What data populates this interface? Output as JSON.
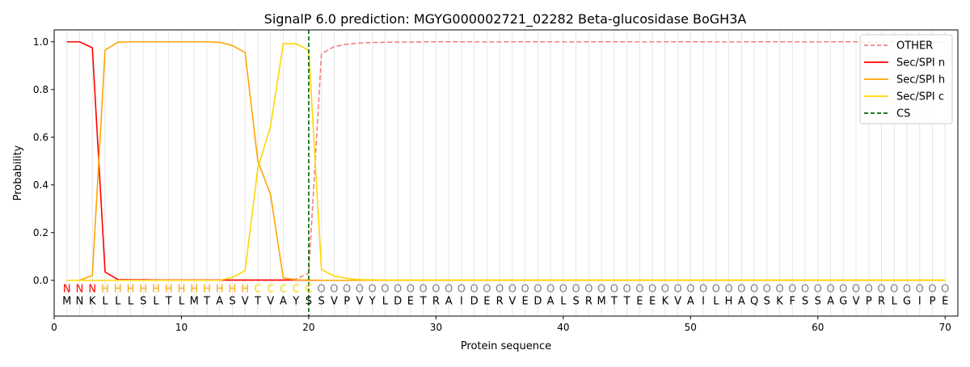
{
  "chart_data": {
    "type": "line",
    "title": "SignalP 6.0 prediction: MGYG000002721_02282 Beta-glucosidase BoGH3A",
    "xlabel": "Protein sequence",
    "ylabel": "Probability",
    "xlim": [
      0,
      71
    ],
    "ylim": [
      -0.15,
      1.05
    ],
    "x_ticks": [
      0,
      10,
      20,
      30,
      40,
      50,
      60,
      70
    ],
    "y_ticks": [
      0.0,
      0.2,
      0.4,
      0.6,
      0.8,
      1.0
    ],
    "x_tick_labels": [
      "0",
      "10",
      "20",
      "30",
      "40",
      "50",
      "60",
      "70"
    ],
    "y_tick_labels": [
      "0.0",
      "0.2",
      "0.4",
      "0.6",
      "0.8",
      "1.0"
    ],
    "grid": "vertical lines at each residue",
    "legend_position": "top-right",
    "x": [
      1,
      2,
      3,
      4,
      5,
      6,
      7,
      8,
      9,
      10,
      11,
      12,
      13,
      14,
      15,
      16,
      17,
      18,
      19,
      20,
      21,
      22,
      23,
      24,
      25,
      26,
      27,
      28,
      29,
      30,
      31,
      32,
      33,
      34,
      35,
      36,
      37,
      38,
      39,
      40,
      41,
      42,
      43,
      44,
      45,
      46,
      47,
      48,
      49,
      50,
      51,
      52,
      53,
      54,
      55,
      56,
      57,
      58,
      59,
      60,
      61,
      62,
      63,
      64,
      65,
      66,
      67,
      68,
      69,
      70
    ],
    "series": [
      {
        "name": "OTHER",
        "color": "#f08080",
        "dash": true,
        "values": [
          0,
          0,
          0,
          0,
          0,
          0,
          0,
          0,
          0,
          0,
          0,
          0,
          0,
          0,
          0,
          0,
          0,
          0,
          0.005,
          0.03,
          0.95,
          0.98,
          0.99,
          0.995,
          0.997,
          0.998,
          0.999,
          0.999,
          1,
          1,
          1,
          1,
          1,
          1,
          1,
          1,
          1,
          1,
          1,
          1,
          1,
          1,
          1,
          1,
          1,
          1,
          1,
          1,
          1,
          1,
          1,
          1,
          1,
          1,
          1,
          1,
          1,
          1,
          1,
          1,
          1,
          1,
          1,
          1,
          1,
          1,
          1,
          1,
          1,
          1
        ]
      },
      {
        "name": "Sec/SPI n",
        "color": "#ff0000",
        "dash": false,
        "values": [
          1.0,
          1.0,
          0.975,
          0.035,
          0.003,
          0.002,
          0.002,
          0.001,
          0.001,
          0.001,
          0.001,
          0.001,
          0.001,
          0.001,
          0.001,
          0.001,
          0.001,
          0.001,
          0.001,
          0,
          0,
          0,
          0,
          0,
          0,
          0,
          0,
          0,
          0,
          0,
          0,
          0,
          0,
          0,
          0,
          0,
          0,
          0,
          0,
          0,
          0,
          0,
          0,
          0,
          0,
          0,
          0,
          0,
          0,
          0,
          0,
          0,
          0,
          0,
          0,
          0,
          0,
          0,
          0,
          0,
          0,
          0,
          0,
          0,
          0,
          0,
          0,
          0,
          0,
          0
        ]
      },
      {
        "name": "Sec/SPI h",
        "color": "#ffa500",
        "dash": false,
        "values": [
          0,
          0,
          0.02,
          0.965,
          0.998,
          1.0,
          1.0,
          1.0,
          1.0,
          1.0,
          1.0,
          1.0,
          0.998,
          0.985,
          0.955,
          0.5,
          0.36,
          0.01,
          0.002,
          0.001,
          0,
          0,
          0,
          0,
          0,
          0,
          0,
          0,
          0,
          0,
          0,
          0,
          0,
          0,
          0,
          0,
          0,
          0,
          0,
          0,
          0,
          0,
          0,
          0,
          0,
          0,
          0,
          0,
          0,
          0,
          0,
          0,
          0,
          0,
          0,
          0,
          0,
          0,
          0,
          0,
          0,
          0,
          0,
          0,
          0,
          0,
          0,
          0,
          0,
          0
        ]
      },
      {
        "name": "Sec/SPI c",
        "color": "#ffd700",
        "dash": false,
        "values": [
          0,
          0,
          0,
          0,
          0,
          0,
          0,
          0,
          0,
          0,
          0,
          0,
          0,
          0.012,
          0.04,
          0.47,
          0.645,
          0.992,
          0.992,
          0.965,
          0.045,
          0.018,
          0.008,
          0.003,
          0.002,
          0.001,
          0.001,
          0.001,
          0.001,
          0.001,
          0.001,
          0.001,
          0.001,
          0.001,
          0.001,
          0.001,
          0.001,
          0.001,
          0.001,
          0.001,
          0.001,
          0.001,
          0.001,
          0.001,
          0.001,
          0.001,
          0.001,
          0.001,
          0.001,
          0.001,
          0.001,
          0.001,
          0.001,
          0.001,
          0.001,
          0.001,
          0.001,
          0.001,
          0.001,
          0.001,
          0.001,
          0.001,
          0.001,
          0.001,
          0.001,
          0.001,
          0.001,
          0.001,
          0.001,
          0.001
        ]
      }
    ],
    "cs": {
      "name": "CS",
      "x": 20,
      "color": "#006400"
    },
    "sequence": [
      "M",
      "N",
      "K",
      "L",
      "L",
      "L",
      "S",
      "L",
      "T",
      "L",
      "M",
      "T",
      "A",
      "S",
      "V",
      "T",
      "V",
      "A",
      "Y",
      "S",
      "S",
      "V",
      "P",
      "V",
      "Y",
      "L",
      "D",
      "E",
      "T",
      "R",
      "A",
      "I",
      "D",
      "E",
      "R",
      "V",
      "E",
      "D",
      "A",
      "L",
      "S",
      "R",
      "M",
      "T",
      "T",
      "E",
      "E",
      "K",
      "V",
      "A",
      "I",
      "L",
      "H",
      "A",
      "Q",
      "S",
      "K",
      "F",
      "S",
      "S",
      "A",
      "G",
      "V",
      "P",
      "R",
      "L",
      "G",
      "I",
      "P",
      "E"
    ],
    "regions": [
      "N",
      "N",
      "N",
      "H",
      "H",
      "H",
      "H",
      "H",
      "H",
      "H",
      "H",
      "H",
      "H",
      "H",
      "H",
      "C",
      "C",
      "C",
      "C",
      "C",
      "O",
      "O",
      "O",
      "O",
      "O",
      "O",
      "O",
      "O",
      "O",
      "O",
      "O",
      "O",
      "O",
      "O",
      "O",
      "O",
      "O",
      "O",
      "O",
      "O",
      "O",
      "O",
      "O",
      "O",
      "O",
      "O",
      "O",
      "O",
      "O",
      "O",
      "O",
      "O",
      "O",
      "O",
      "O",
      "O",
      "O",
      "O",
      "O",
      "O",
      "O",
      "O",
      "O",
      "O",
      "O",
      "O",
      "O",
      "O",
      "O",
      "O"
    ],
    "region_colors": {
      "N": "#ff0000",
      "H": "#ffa500",
      "C": "#ffd700",
      "O": "#808080"
    }
  }
}
